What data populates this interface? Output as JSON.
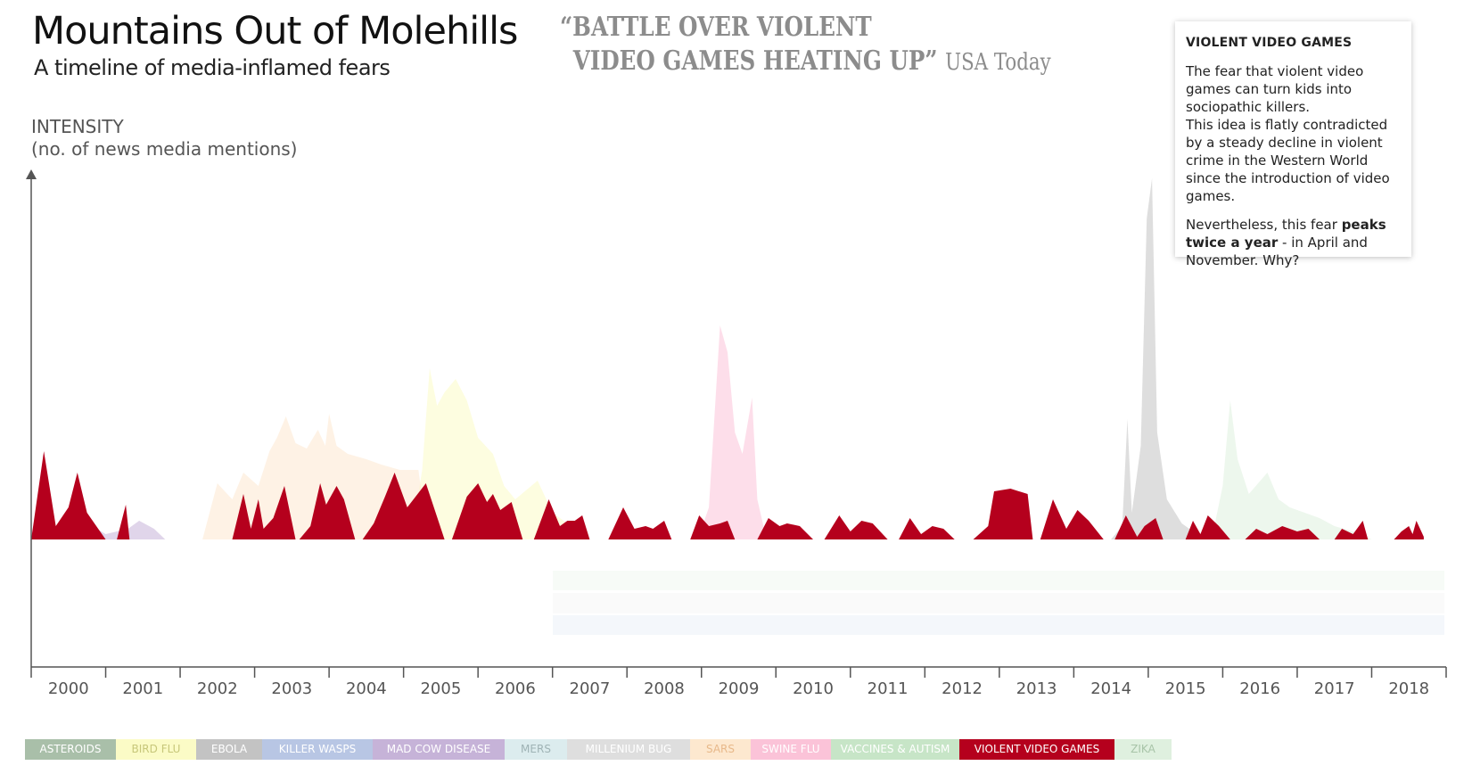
{
  "header": {
    "title": "Mountains Out of Molehills",
    "subtitle": "A timeline of media-inflamed fears"
  },
  "quote": {
    "line1": "“BATTLE OVER VIOLENT",
    "line2": "VIDEO GAMES HEATING UP”",
    "source": "USA Today"
  },
  "axis": {
    "ylabel_line1": "INTENSITY",
    "ylabel_line2": "(no. of news media mentions)"
  },
  "infobox": {
    "heading": "VIOLENT VIDEO GAMES",
    "para1": "The fear that violent video games can turn kids into sociopathic killers.",
    "para2": "This idea is flatly contradicted by a steady decline in violent crime in the Western World since the introduction of video games.",
    "para3_pre": "Nevertheless, this fear ",
    "para3_bold": "peaks twice a year",
    "para3_post": " - in April and November. Why?"
  },
  "legend": [
    {
      "label": "ASTEROIDS",
      "color": "#a9bfa9",
      "text": "#ffffff"
    },
    {
      "label": "BIRD FLU",
      "color": "#fbfbc6",
      "text": "#c7c77a"
    },
    {
      "label": "EBOLA",
      "color": "#c3c3c3",
      "text": "#ffffff"
    },
    {
      "label": "KILLER WASPS",
      "color": "#b8c6e4",
      "text": "#ffffff"
    },
    {
      "label": "MAD COW DISEASE",
      "color": "#c6b3d8",
      "text": "#ffffff"
    },
    {
      "label": "MERS",
      "color": "#dcecee",
      "text": "#9fb3b5"
    },
    {
      "label": "MILLENIUM BUG",
      "color": "#dedede",
      "text": "#ffffff"
    },
    {
      "label": "SARS",
      "color": "#fde8cf",
      "text": "#e8b98a"
    },
    {
      "label": "SWINE FLU",
      "color": "#fbc3d8",
      "text": "#ffffff"
    },
    {
      "label": "VACCINES & AUTISM",
      "color": "#c7e5c7",
      "text": "#ffffff"
    },
    {
      "label": "VIOLENT VIDEO GAMES",
      "color": "#b5001d",
      "text": "#ffffff"
    },
    {
      "label": "ZIKA",
      "color": "#dff0df",
      "text": "#a8c4a8"
    }
  ],
  "chart_data": {
    "type": "area",
    "x_ticks": [
      "2000",
      "2001",
      "2002",
      "2003",
      "2004",
      "2005",
      "2006",
      "2007",
      "2008",
      "2009",
      "2010",
      "2011",
      "2012",
      "2013",
      "2014",
      "2015",
      "2016",
      "2017",
      "2018"
    ],
    "series": [
      {
        "name": "VIOLENT VIDEO GAMES",
        "color": "#b5001d",
        "points": [
          [
            2000.0,
            0
          ],
          [
            2000.17,
            3.3
          ],
          [
            2000.33,
            0.5
          ],
          [
            2000.5,
            1.2
          ],
          [
            2000.62,
            2.5
          ],
          [
            2000.75,
            1
          ],
          [
            2001.0,
            0
          ],
          [
            2001.15,
            0
          ],
          [
            2001.27,
            1.3
          ],
          [
            2001.32,
            0
          ],
          [
            2002.7,
            0
          ],
          [
            2002.85,
            1.7
          ],
          [
            2002.95,
            0.4
          ],
          [
            2003.05,
            1.5
          ],
          [
            2003.12,
            0.4
          ],
          [
            2003.25,
            0.8
          ],
          [
            2003.4,
            2
          ],
          [
            2003.55,
            0
          ],
          [
            2003.6,
            0
          ],
          [
            2003.75,
            0.5
          ],
          [
            2003.88,
            2.1
          ],
          [
            2003.96,
            1.3
          ],
          [
            2004.1,
            2
          ],
          [
            2004.2,
            1.5
          ],
          [
            2004.35,
            0
          ],
          [
            2004.45,
            0
          ],
          [
            2004.6,
            0.6
          ],
          [
            2004.75,
            1.6
          ],
          [
            2004.88,
            2.5
          ],
          [
            2005.05,
            1.2
          ],
          [
            2005.3,
            2.1
          ],
          [
            2005.55,
            0
          ],
          [
            2005.65,
            0
          ],
          [
            2005.85,
            1.6
          ],
          [
            2006.0,
            2.1
          ],
          [
            2006.12,
            1.4
          ],
          [
            2006.2,
            1.7
          ],
          [
            2006.3,
            1.1
          ],
          [
            2006.45,
            1.4
          ],
          [
            2006.6,
            0
          ],
          [
            2006.75,
            0
          ],
          [
            2006.95,
            1.5
          ],
          [
            2007.1,
            0.5
          ],
          [
            2007.2,
            0.7
          ],
          [
            2007.3,
            0.7
          ],
          [
            2007.4,
            0.9
          ],
          [
            2007.5,
            0
          ],
          [
            2007.75,
            0
          ],
          [
            2007.95,
            1.2
          ],
          [
            2008.1,
            0.4
          ],
          [
            2008.25,
            0.5
          ],
          [
            2008.35,
            0.4
          ],
          [
            2008.5,
            0.7
          ],
          [
            2008.6,
            0
          ],
          [
            2008.85,
            0
          ],
          [
            2008.97,
            0.9
          ],
          [
            2009.1,
            0.5
          ],
          [
            2009.25,
            0.6
          ],
          [
            2009.35,
            0.7
          ],
          [
            2009.45,
            0
          ],
          [
            2009.75,
            0
          ],
          [
            2009.9,
            0.8
          ],
          [
            2010.05,
            0.5
          ],
          [
            2010.15,
            0.6
          ],
          [
            2010.32,
            0.5
          ],
          [
            2010.5,
            0
          ],
          [
            2010.65,
            0
          ],
          [
            2010.85,
            0.9
          ],
          [
            2011.0,
            0.3
          ],
          [
            2011.15,
            0.7
          ],
          [
            2011.3,
            0.6
          ],
          [
            2011.5,
            0
          ],
          [
            2011.65,
            0
          ],
          [
            2011.8,
            0.8
          ],
          [
            2011.95,
            0.2
          ],
          [
            2012.1,
            0.5
          ],
          [
            2012.25,
            0.4
          ],
          [
            2012.4,
            0
          ],
          [
            2012.65,
            0
          ],
          [
            2012.85,
            0.5
          ],
          [
            2012.93,
            1.8
          ],
          [
            2013.15,
            1.9
          ],
          [
            2013.38,
            1.7
          ],
          [
            2013.45,
            0
          ],
          [
            2013.55,
            0
          ],
          [
            2013.72,
            1.5
          ],
          [
            2013.9,
            0.4
          ],
          [
            2014.05,
            1.1
          ],
          [
            2014.2,
            0.7
          ],
          [
            2014.4,
            0
          ],
          [
            2014.55,
            0
          ],
          [
            2014.7,
            0.9
          ],
          [
            2014.85,
            0.1
          ],
          [
            2014.95,
            0.5
          ],
          [
            2015.1,
            0.8
          ],
          [
            2015.2,
            0
          ],
          [
            2015.5,
            0
          ],
          [
            2015.6,
            0.7
          ],
          [
            2015.7,
            0.2
          ],
          [
            2015.8,
            0.9
          ],
          [
            2015.95,
            0.5
          ],
          [
            2016.1,
            0
          ],
          [
            2016.3,
            0
          ],
          [
            2016.45,
            0.4
          ],
          [
            2016.6,
            0.2
          ],
          [
            2016.8,
            0.5
          ],
          [
            2017.0,
            0.3
          ],
          [
            2017.15,
            0.4
          ],
          [
            2017.3,
            0
          ],
          [
            2017.5,
            0
          ],
          [
            2017.6,
            0.4
          ],
          [
            2017.75,
            0.2
          ],
          [
            2017.88,
            0.7
          ],
          [
            2017.95,
            0
          ],
          [
            2018.3,
            0
          ],
          [
            2018.4,
            0.3
          ],
          [
            2018.5,
            0.5
          ],
          [
            2018.55,
            0.2
          ],
          [
            2018.6,
            0.7
          ],
          [
            2018.7,
            0.1
          ]
        ]
      },
      {
        "name": "SARS",
        "color": "#fde8cf",
        "points": [
          [
            2002.3,
            0
          ],
          [
            2002.5,
            2.1
          ],
          [
            2002.7,
            1.5
          ],
          [
            2002.85,
            2.5
          ],
          [
            2003.05,
            2
          ],
          [
            2003.2,
            3.3
          ],
          [
            2003.3,
            3.8
          ],
          [
            2003.42,
            4.6
          ],
          [
            2003.55,
            3.6
          ],
          [
            2003.7,
            3.4
          ],
          [
            2003.85,
            4.1
          ],
          [
            2003.95,
            3.5
          ],
          [
            2004.0,
            4.7
          ],
          [
            2004.1,
            3.5
          ],
          [
            2004.25,
            3.2
          ],
          [
            2004.5,
            3
          ],
          [
            2004.7,
            2.8
          ],
          [
            2004.95,
            2.6
          ],
          [
            2005.2,
            2.6
          ],
          [
            2005.3,
            0.5
          ],
          [
            2005.5,
            0
          ]
        ]
      },
      {
        "name": "BIRD FLU",
        "color": "#fbfbc6",
        "points": [
          [
            2005.1,
            0
          ],
          [
            2005.25,
            2.6
          ],
          [
            2005.35,
            6.4
          ],
          [
            2005.45,
            5
          ],
          [
            2005.55,
            5.5
          ],
          [
            2005.7,
            6
          ],
          [
            2005.85,
            5.2
          ],
          [
            2006.0,
            3.8
          ],
          [
            2006.2,
            3.2
          ],
          [
            2006.35,
            2
          ],
          [
            2006.5,
            1.5
          ],
          [
            2006.8,
            2.2
          ],
          [
            2007.0,
            1
          ],
          [
            2007.3,
            0.4
          ],
          [
            2007.5,
            0
          ]
        ]
      },
      {
        "name": "SWINE FLU",
        "color": "#fbc3d8",
        "points": [
          [
            2008.95,
            0
          ],
          [
            2009.1,
            1.2
          ],
          [
            2009.25,
            8
          ],
          [
            2009.35,
            7
          ],
          [
            2009.45,
            4
          ],
          [
            2009.55,
            3.2
          ],
          [
            2009.68,
            5.3
          ],
          [
            2009.75,
            1.5
          ],
          [
            2009.85,
            0.3
          ],
          [
            2009.9,
            0
          ]
        ]
      },
      {
        "name": "EBOLA",
        "color": "#c3c3c3",
        "points": [
          [
            2014.5,
            0
          ],
          [
            2014.65,
            0.5
          ],
          [
            2014.72,
            4.5
          ],
          [
            2014.78,
            1
          ],
          [
            2014.9,
            3.5
          ],
          [
            2014.98,
            12
          ],
          [
            2015.05,
            13.5
          ],
          [
            2015.12,
            4
          ],
          [
            2015.25,
            1.5
          ],
          [
            2015.45,
            0.6
          ],
          [
            2015.6,
            0.3
          ],
          [
            2015.8,
            0
          ]
        ]
      },
      {
        "name": "ZIKA",
        "color": "#dff0df",
        "points": [
          [
            2015.85,
            0
          ],
          [
            2016.0,
            2
          ],
          [
            2016.1,
            5.2
          ],
          [
            2016.2,
            3
          ],
          [
            2016.35,
            1.7
          ],
          [
            2016.6,
            2.5
          ],
          [
            2016.75,
            1.5
          ],
          [
            2016.9,
            1.2
          ],
          [
            2017.1,
            1
          ],
          [
            2017.3,
            0.8
          ],
          [
            2017.5,
            0.5
          ],
          [
            2017.75,
            0.3
          ],
          [
            2018.0,
            0
          ]
        ]
      },
      {
        "name": "MAD COW DISEASE",
        "color": "#c6b3d8",
        "points": [
          [
            2000.0,
            0
          ],
          [
            2000.4,
            0.3
          ],
          [
            2000.7,
            0.7
          ],
          [
            2001.0,
            0.2
          ],
          [
            2001.3,
            0.4
          ],
          [
            2001.45,
            0.7
          ],
          [
            2001.65,
            0.4
          ],
          [
            2001.8,
            0
          ]
        ]
      }
    ]
  }
}
